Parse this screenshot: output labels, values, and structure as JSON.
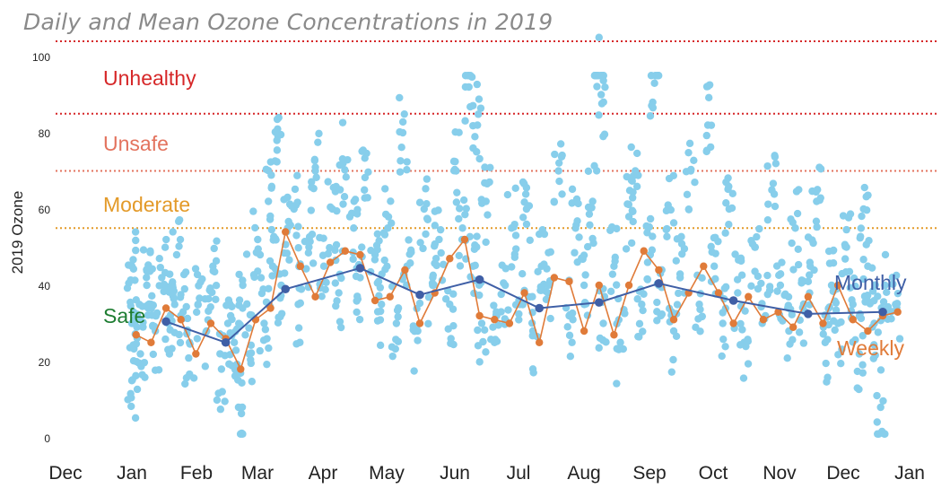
{
  "chart_data": {
    "type": "scatter",
    "title": "Daily and Mean Ozone Concentrations  in 2019",
    "ylabel": "2019 Ozone",
    "xlabel": "",
    "ylim": [
      0,
      105
    ],
    "yticks": [
      "0",
      "20",
      "40",
      "60",
      "80",
      "100"
    ],
    "xticks": [
      "Dec",
      "Jan",
      "Feb",
      "Mar",
      "Apr",
      "May",
      "Jun",
      "Jul",
      "Aug",
      "Sep",
      "Oct",
      "Nov",
      "Dec",
      "Jan"
    ],
    "thresholds": [
      {
        "label": "Unhealthy",
        "value": 85,
        "color": "#d62728"
      },
      {
        "label": "Unsafe",
        "value": 70,
        "color": "#e3735e"
      },
      {
        "label": "Moderate",
        "value": 55,
        "color": "#e39a29"
      },
      {
        "label": "Safe",
        "value": 0,
        "color": "#1e7d32"
      }
    ],
    "top_line": {
      "value": 104,
      "color": "#d62728"
    },
    "daily": {
      "color": "#87ceeb",
      "points_note": "",
      "samples": [
        [
          "2019-01-01",
          30
        ],
        [
          "2019-01-01",
          45
        ],
        [
          "2019-01-01",
          15
        ],
        [
          "2019-01-03",
          32
        ],
        [
          "2019-01-05",
          22
        ],
        [
          "2019-01-08",
          40
        ],
        [
          "2019-01-10",
          35
        ],
        [
          "2019-01-12",
          28
        ],
        [
          "2019-01-15",
          42
        ],
        [
          "2019-01-18",
          30
        ],
        [
          "2019-01-20",
          38
        ],
        [
          "2019-01-22",
          48
        ],
        [
          "2019-01-25",
          33
        ],
        [
          "2019-01-28",
          25
        ],
        [
          "2019-02-01",
          35
        ],
        [
          "2019-02-05",
          28
        ],
        [
          "2019-02-08",
          45
        ],
        [
          "2019-02-12",
          18
        ],
        [
          "2019-02-15",
          30
        ],
        [
          "2019-02-18",
          25
        ],
        [
          "2019-02-20",
          8
        ],
        [
          "2019-02-22",
          40
        ],
        [
          "2019-02-25",
          22
        ],
        [
          "2019-03-01",
          52
        ],
        [
          "2019-03-04",
          30
        ],
        [
          "2019-03-06",
          62
        ],
        [
          "2019-03-08",
          45
        ],
        [
          "2019-03-10",
          78
        ],
        [
          "2019-03-12",
          40
        ],
        [
          "2019-03-15",
          55
        ],
        [
          "2019-03-18",
          60
        ],
        [
          "2019-03-20",
          35
        ],
        [
          "2019-03-25",
          50
        ],
        [
          "2019-03-28",
          70
        ],
        [
          "2019-04-01",
          45
        ],
        [
          "2019-04-05",
          60
        ],
        [
          "2019-04-08",
          38
        ],
        [
          "2019-04-10",
          72
        ],
        [
          "2019-04-15",
          55
        ],
        [
          "2019-04-18",
          42
        ],
        [
          "2019-04-20",
          65
        ],
        [
          "2019-04-25",
          48
        ],
        [
          "2019-04-28",
          35
        ],
        [
          "2019-05-01",
          55
        ],
        [
          "2019-05-05",
          30
        ],
        [
          "2019-05-08",
          80
        ],
        [
          "2019-05-10",
          45
        ],
        [
          "2019-05-15",
          28
        ],
        [
          "2019-05-18",
          60
        ],
        [
          "2019-05-22",
          40
        ],
        [
          "2019-05-25",
          52
        ],
        [
          "2019-05-30",
          35
        ],
        [
          "2019-06-02",
          70
        ],
        [
          "2019-06-05",
          55
        ],
        [
          "2019-06-08",
          92
        ],
        [
          "2019-06-10",
          45
        ],
        [
          "2019-06-12",
          82
        ],
        [
          "2019-06-14",
          30
        ],
        [
          "2019-06-16",
          62
        ],
        [
          "2019-06-20",
          25
        ],
        [
          "2019-06-25",
          40
        ],
        [
          "2019-06-28",
          55
        ],
        [
          "2019-07-02",
          35
        ],
        [
          "2019-07-05",
          60
        ],
        [
          "2019-07-08",
          28
        ],
        [
          "2019-07-12",
          45
        ],
        [
          "2019-07-15",
          38
        ],
        [
          "2019-07-20",
          70
        ],
        [
          "2019-07-25",
          32
        ],
        [
          "2019-07-28",
          55
        ],
        [
          "2019-08-01",
          40
        ],
        [
          "2019-08-05",
          62
        ],
        [
          "2019-08-08",
          105
        ],
        [
          "2019-08-09",
          90
        ],
        [
          "2019-08-10",
          30
        ],
        [
          "2019-08-15",
          45
        ],
        [
          "2019-08-18",
          25
        ],
        [
          "2019-08-22",
          58
        ],
        [
          "2019-08-25",
          70
        ],
        [
          "2019-08-28",
          35
        ],
        [
          "2019-09-01",
          48
        ],
        [
          "2019-09-03",
          93
        ],
        [
          "2019-09-05",
          40
        ],
        [
          "2019-09-10",
          60
        ],
        [
          "2019-09-12",
          28
        ],
        [
          "2019-09-15",
          42
        ],
        [
          "2019-09-20",
          70
        ],
        [
          "2019-09-24",
          35
        ],
        [
          "2019-09-28",
          82
        ],
        [
          "2019-10-01",
          45
        ],
        [
          "2019-10-05",
          30
        ],
        [
          "2019-10-08",
          60
        ],
        [
          "2019-10-12",
          38
        ],
        [
          "2019-10-15",
          25
        ],
        [
          "2019-10-20",
          50
        ],
        [
          "2019-10-25",
          32
        ],
        [
          "2019-10-28",
          65
        ],
        [
          "2019-11-01",
          40
        ],
        [
          "2019-11-05",
          28
        ],
        [
          "2019-11-08",
          55
        ],
        [
          "2019-11-12",
          35
        ],
        [
          "2019-11-15",
          45
        ],
        [
          "2019-11-18",
          62
        ],
        [
          "2019-11-22",
          25
        ],
        [
          "2019-11-25",
          40
        ],
        [
          "2019-11-28",
          30
        ],
        [
          "2019-12-02",
          50
        ],
        [
          "2019-12-05",
          35
        ],
        [
          "2019-12-08",
          22
        ],
        [
          "2019-12-10",
          60
        ],
        [
          "2019-12-12",
          45
        ],
        [
          "2019-12-15",
          30
        ],
        [
          "2019-12-18",
          8
        ],
        [
          "2019-12-20",
          40
        ],
        [
          "2019-12-25",
          35
        ]
      ]
    },
    "series": [
      {
        "name": "Weekly",
        "color": "#e07b39",
        "x": [
          "2019-01-03",
          "2019-01-10",
          "2019-01-17",
          "2019-01-24",
          "2019-01-31",
          "2019-02-07",
          "2019-02-14",
          "2019-02-21",
          "2019-02-28",
          "2019-03-07",
          "2019-03-14",
          "2019-03-21",
          "2019-03-28",
          "2019-04-04",
          "2019-04-11",
          "2019-04-18",
          "2019-04-25",
          "2019-05-02",
          "2019-05-09",
          "2019-05-16",
          "2019-05-23",
          "2019-05-30",
          "2019-06-06",
          "2019-06-13",
          "2019-06-20",
          "2019-06-27",
          "2019-07-04",
          "2019-07-11",
          "2019-07-18",
          "2019-07-25",
          "2019-08-01",
          "2019-08-08",
          "2019-08-15",
          "2019-08-22",
          "2019-08-29",
          "2019-09-05",
          "2019-09-12",
          "2019-09-19",
          "2019-09-26",
          "2019-10-03",
          "2019-10-10",
          "2019-10-17",
          "2019-10-24",
          "2019-10-31",
          "2019-11-07",
          "2019-11-14",
          "2019-11-21",
          "2019-11-28",
          "2019-12-05",
          "2019-12-12",
          "2019-12-19",
          "2019-12-26"
        ],
        "values": [
          27,
          25,
          34,
          31,
          22,
          30,
          26,
          18,
          31,
          34,
          54,
          45,
          37,
          46,
          49,
          48,
          36,
          37,
          44,
          30,
          38,
          47,
          52,
          32,
          31,
          30,
          38,
          25,
          42,
          41,
          28,
          40,
          27,
          40,
          49,
          44,
          31,
          38,
          45,
          38,
          30,
          37,
          31,
          33,
          29,
          37,
          30,
          40,
          31,
          28,
          32,
          33
        ]
      },
      {
        "name": "Monthly",
        "color": "#3f5fa6",
        "x": [
          "2019-01-17",
          "2019-02-14",
          "2019-03-14",
          "2019-04-18",
          "2019-05-16",
          "2019-06-13",
          "2019-07-11",
          "2019-08-08",
          "2019-09-05",
          "2019-10-10",
          "2019-11-14",
          "2019-12-19"
        ],
        "values": [
          30.5,
          25,
          39,
          44.5,
          37.5,
          41.5,
          34,
          35.5,
          40.5,
          36,
          32.5,
          33
        ]
      }
    ]
  }
}
